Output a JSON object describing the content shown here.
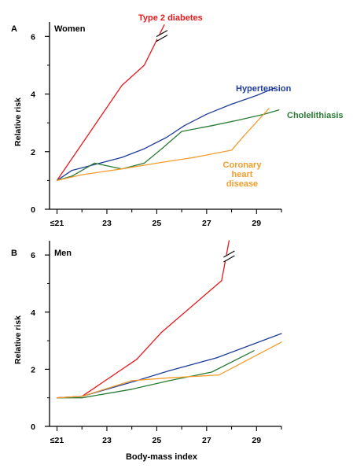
{
  "chart_data": [
    {
      "type": "line",
      "panel_label": "A",
      "title": "Women",
      "xlabel": "",
      "ylabel": "Relative risk",
      "xlim": [
        20.7,
        30
      ],
      "ylim": [
        0,
        6.5
      ],
      "x_tick_labels": [
        "≤21",
        "23",
        "25",
        "27",
        "29"
      ],
      "y_tick_labels": [
        "0",
        "2",
        "4",
        "6"
      ],
      "x_ticks": [
        21,
        23,
        25,
        27,
        29
      ],
      "y_ticks": [
        0,
        2,
        4,
        6
      ],
      "grid": false,
      "axis_break_on": "Type 2 diabetes",
      "series": [
        {
          "name": "Type 2 diabetes",
          "color": "#e8191c",
          "label_pos": "top",
          "x": [
            21,
            22.5,
            23.6,
            24.5,
            25.3
          ],
          "y": [
            1.0,
            2.9,
            4.3,
            5.0,
            6.4
          ]
        },
        {
          "name": "Hypertension",
          "color": "#1f3d99",
          "label_pos": "right-upper",
          "x": [
            21,
            21.6,
            22.5,
            23.6,
            24.5,
            25.4,
            26.1,
            27.0,
            28.0,
            29.0,
            29.7
          ],
          "y": [
            1.0,
            1.35,
            1.55,
            1.8,
            2.1,
            2.5,
            2.9,
            3.3,
            3.65,
            3.95,
            4.2
          ]
        },
        {
          "name": "Cholelithiasis",
          "color": "#2a7a34",
          "label_pos": "right",
          "x": [
            21,
            21.6,
            22.5,
            23.6,
            24.5,
            25.2,
            26.0,
            27.2,
            28.3,
            29.3,
            29.9
          ],
          "y": [
            1.0,
            1.15,
            1.6,
            1.4,
            1.6,
            2.1,
            2.7,
            2.9,
            3.1,
            3.3,
            3.45
          ]
        },
        {
          "name": "Coronary heart disease",
          "label_lines": [
            "Coronary",
            "heart",
            "disease"
          ],
          "color": "#f39c2c",
          "label_pos": "lower-right",
          "x": [
            21,
            22.0,
            23.6,
            25.0,
            26.5,
            28.0,
            28.5,
            29.5
          ],
          "y": [
            1.0,
            1.2,
            1.4,
            1.6,
            1.8,
            2.05,
            2.55,
            3.5
          ]
        }
      ]
    },
    {
      "type": "line",
      "panel_label": "B",
      "title": "Men",
      "xlabel": "Body-mass index",
      "ylabel": "Relative risk",
      "xlim": [
        20.7,
        30
      ],
      "ylim": [
        0,
        6.5
      ],
      "x_tick_labels": [
        "≤21",
        "23",
        "25",
        "27",
        "29"
      ],
      "y_tick_labels": [
        "0",
        "2",
        "4",
        "6"
      ],
      "x_ticks": [
        21,
        23,
        25,
        27,
        29
      ],
      "y_ticks": [
        0,
        2,
        4,
        6
      ],
      "grid": false,
      "axis_break_on": "Type 2 diabetes",
      "series": [
        {
          "name": "Type 2 diabetes",
          "color": "#e8191c",
          "x": [
            21,
            22.0,
            24.2,
            25.2,
            27.6,
            27.9
          ],
          "y": [
            1.0,
            1.05,
            2.35,
            3.3,
            5.1,
            6.5
          ]
        },
        {
          "name": "Hypertension",
          "color": "#1f3d99",
          "x": [
            21,
            22.0,
            24.2,
            25.5,
            27.4,
            30.0
          ],
          "y": [
            1.0,
            1.05,
            1.6,
            1.95,
            2.4,
            3.25
          ]
        },
        {
          "name": "Cholelithiasis",
          "color": "#2a7a34",
          "x": [
            21,
            22.0,
            24.0,
            25.5,
            27.2,
            28.9
          ],
          "y": [
            1.0,
            1.0,
            1.3,
            1.6,
            1.9,
            2.65
          ]
        },
        {
          "name": "Coronary heart disease",
          "color": "#f39c2c",
          "x": [
            21,
            22.0,
            24.0,
            25.5,
            27.5,
            30.0
          ],
          "y": [
            1.0,
            1.05,
            1.6,
            1.7,
            1.8,
            2.95
          ]
        }
      ]
    }
  ]
}
